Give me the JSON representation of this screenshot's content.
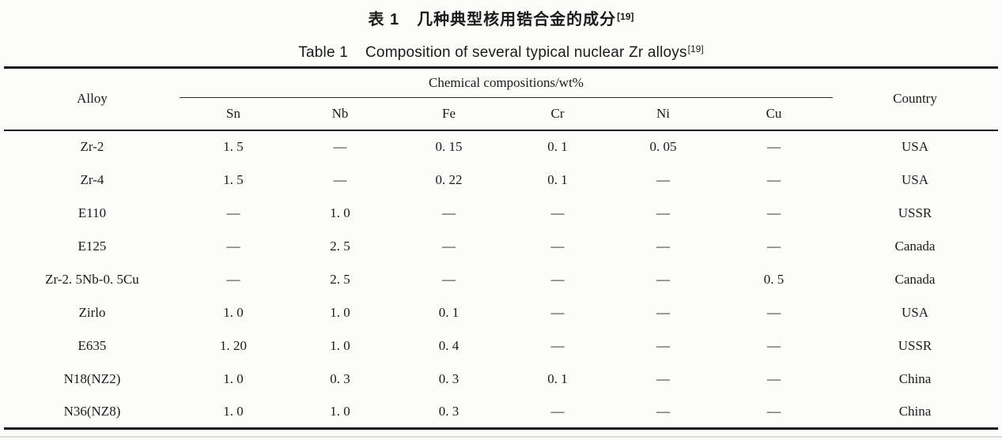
{
  "titles": {
    "chinese": {
      "prefix": "表 1",
      "text": "几种典型核用锆合金的成分",
      "reference": "[19]"
    },
    "english": {
      "prefix": "Table 1",
      "text": "Composition of several typical nuclear Zr alloys",
      "reference": "[19]"
    }
  },
  "table": {
    "header": {
      "alloy": "Alloy",
      "group": "Chemical compositions/wt%",
      "elements": [
        "Sn",
        "Nb",
        "Fe",
        "Cr",
        "Ni",
        "Cu"
      ],
      "country": "Country"
    },
    "rows": [
      {
        "alloy": "Zr-2",
        "values": [
          "1. 5",
          "—",
          "0. 15",
          "0. 1",
          "0. 05",
          "—"
        ],
        "country": "USA"
      },
      {
        "alloy": "Zr-4",
        "values": [
          "1. 5",
          "—",
          "0. 22",
          "0. 1",
          "—",
          "—"
        ],
        "country": "USA"
      },
      {
        "alloy": "E110",
        "values": [
          "—",
          "1. 0",
          "—",
          "—",
          "—",
          "—"
        ],
        "country": "USSR"
      },
      {
        "alloy": "E125",
        "values": [
          "—",
          "2. 5",
          "—",
          "—",
          "—",
          "—"
        ],
        "country": "Canada"
      },
      {
        "alloy": "Zr-2. 5Nb-0. 5Cu",
        "values": [
          "—",
          "2. 5",
          "—",
          "—",
          "—",
          "0. 5"
        ],
        "country": "Canada"
      },
      {
        "alloy": "Zirlo",
        "values": [
          "1. 0",
          "1. 0",
          "0. 1",
          "—",
          "—",
          "—"
        ],
        "country": "USA"
      },
      {
        "alloy": "E635",
        "values": [
          "1. 20",
          "1. 0",
          "0. 4",
          "—",
          "—",
          "—"
        ],
        "country": "USSR"
      },
      {
        "alloy": "N18(NZ2)",
        "values": [
          "1. 0",
          "0. 3",
          "0. 3",
          "0. 1",
          "—",
          "—"
        ],
        "country": "China"
      },
      {
        "alloy": "N36(NZ8)",
        "values": [
          "1. 0",
          "1. 0",
          "0. 3",
          "—",
          "—",
          "—"
        ],
        "country": "China"
      }
    ]
  }
}
